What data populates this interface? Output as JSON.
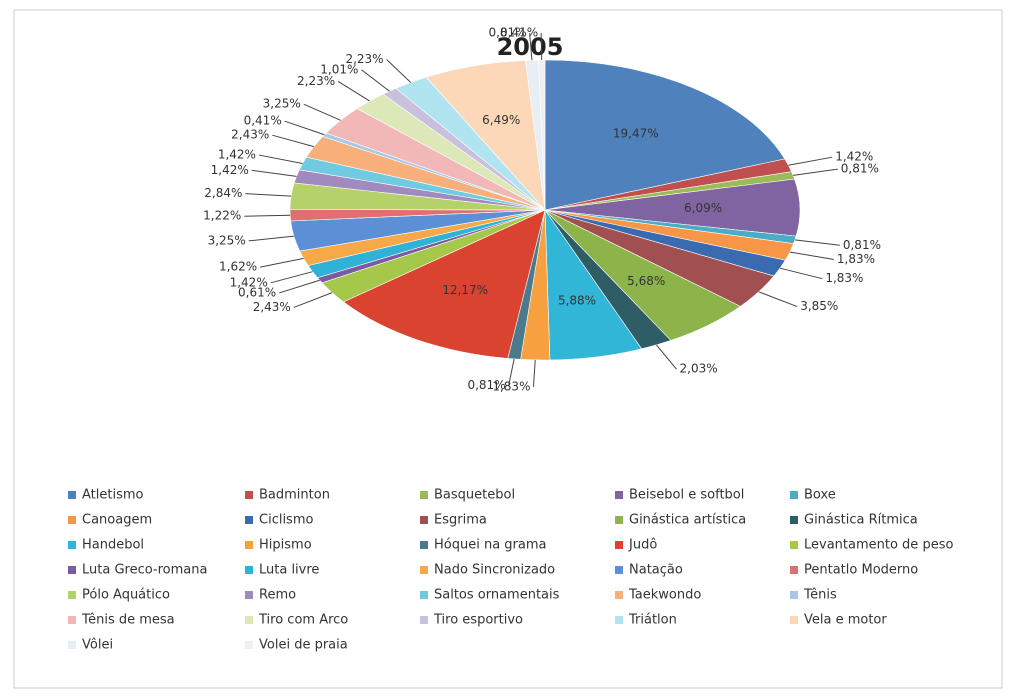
{
  "chart_data": {
    "type": "pie",
    "title": "2005",
    "categories": [
      "Atletismo",
      "Badminton",
      "Basquetebol",
      "Beisebol e softbol",
      "Boxe",
      "Canoagem",
      "Ciclismo",
      "Esgrima",
      "Ginástica artística",
      "Ginástica Rítmica",
      "Handebol",
      "Hipismo",
      "Hóquei na grama",
      "Judô",
      "Levantamento de peso",
      "Luta Greco-romana",
      "Luta livre",
      "Nado Sincronizado",
      "Natação",
      "Pentatlo Moderno",
      "Pólo Aquático",
      "Remo",
      "Saltos ornamentais",
      "Taekwondo",
      "Tênis",
      "Tênis de mesa",
      "Tiro com Arco",
      "Tiro esportivo",
      "Triátlon",
      "Vela e motor",
      "Vôlei",
      "Volei de praia"
    ],
    "values": [
      19.47,
      1.42,
      0.81,
      6.09,
      0.81,
      1.83,
      1.83,
      3.85,
      5.68,
      2.03,
      5.88,
      1.83,
      0.81,
      12.17,
      2.43,
      0.61,
      1.42,
      1.62,
      3.25,
      1.22,
      2.84,
      1.42,
      1.42,
      2.43,
      0.41,
      3.25,
      2.23,
      1.01,
      2.23,
      6.49,
      0.81,
      0.41
    ],
    "value_labels": [
      "19,47%",
      "1,42%",
      "0,81%",
      "6,09%",
      "0,81%",
      "1,83%",
      "1,83%",
      "3,85%",
      "5,68%",
      "2,03%",
      "5,88%",
      "1,83%",
      "0,81%",
      "12,17%",
      "2,43%",
      "0,61%",
      "1,42%",
      "1,62%",
      "3,25%",
      "1,22%",
      "2,84%",
      "1,42%",
      "1,42%",
      "2,43%",
      "0,41%",
      "3,25%",
      "2,23%",
      "1,01%",
      "2,23%",
      "6,49%",
      "0,81%",
      "0,41%"
    ],
    "colors": [
      "#4f81bd",
      "#c0504d",
      "#9bbb59",
      "#8064a2",
      "#4bacc6",
      "#f79646",
      "#3a6ab0",
      "#a05050",
      "#8db34b",
      "#2e5d66",
      "#31b6d8",
      "#f7a040",
      "#4a7a8c",
      "#d9432f",
      "#a6c84a",
      "#7a5aa0",
      "#2fb2d6",
      "#f7a848",
      "#5b8fd6",
      "#e07070",
      "#b5d16a",
      "#a08ac0",
      "#70cbe0",
      "#f8b07a",
      "#a8c8e8",
      "#f2b8b8",
      "#dde8b8",
      "#c8c0dc",
      "#b0e4f0",
      "#fcd8b8",
      "#e8eef6",
      "#f0f0f0"
    ],
    "legend": "bottom"
  }
}
